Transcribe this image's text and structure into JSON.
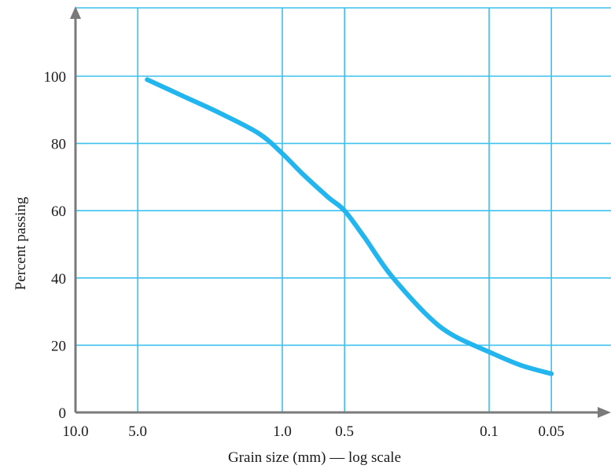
{
  "chart_data": {
    "type": "line",
    "xlabel": "Grain size (mm) — log scale",
    "ylabel": "Percent passing",
    "x_scale": "log",
    "x_reversed": true,
    "x_ticks": [
      {
        "value": 10.0,
        "label": "10.0"
      },
      {
        "value": 5.0,
        "label": "5.0"
      },
      {
        "value": 1.0,
        "label": "1.0"
      },
      {
        "value": 0.5,
        "label": "0.5"
      },
      {
        "value": 0.1,
        "label": "0.1"
      },
      {
        "value": 0.05,
        "label": "0.05"
      }
    ],
    "y_ticks": [
      {
        "value": 0,
        "label": "0"
      },
      {
        "value": 20,
        "label": "20"
      },
      {
        "value": 40,
        "label": "40"
      },
      {
        "value": 60,
        "label": "60"
      },
      {
        "value": 80,
        "label": "80"
      },
      {
        "value": 100,
        "label": "100"
      }
    ],
    "xlim": [
      10.0,
      0.03
    ],
    "ylim": [
      0,
      118
    ],
    "grid": true,
    "series": [
      {
        "x": [
          4.5,
          3.0,
          2.0,
          1.3,
          1.0,
          0.8,
          0.6,
          0.5,
          0.4,
          0.3,
          0.2,
          0.15,
          0.1,
          0.07,
          0.05
        ],
        "y": [
          99,
          94,
          89,
          83,
          77,
          71,
          64,
          60,
          52,
          41,
          29,
          23,
          18,
          14,
          11.5
        ]
      }
    ],
    "colors": {
      "grid": "#3cc0ee",
      "curve": "#22b5ee",
      "axis": "#7a7a7a"
    }
  }
}
